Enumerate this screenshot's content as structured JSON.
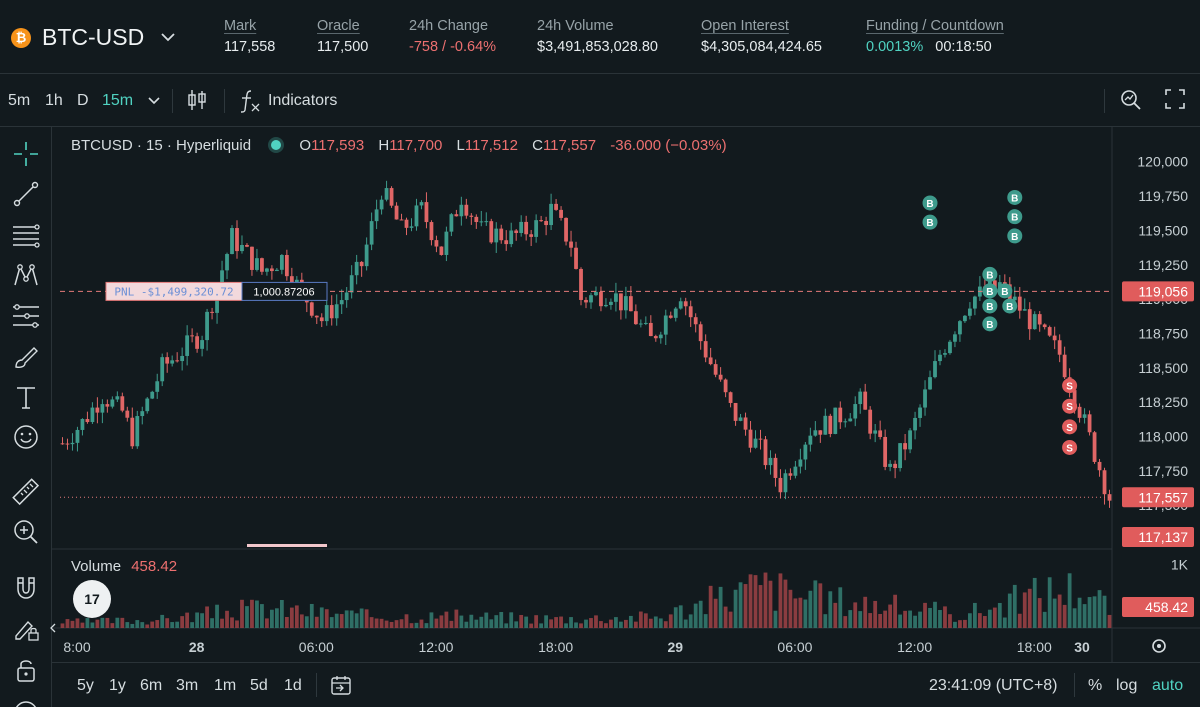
{
  "header": {
    "coin_glyph": "₿",
    "pair": "BTC-USD",
    "stats": [
      {
        "label": "Mark",
        "value": "117,558",
        "underline": true
      },
      {
        "label": "Oracle",
        "value": "117,500",
        "underline": true
      },
      {
        "label": "24h Change",
        "value": "-758 / -0.64%",
        "underline": false
      },
      {
        "label": "24h Volume",
        "value": "$3,491,853,028.80",
        "underline": false
      },
      {
        "label": "Open Interest",
        "value": "$4,305,084,424.65",
        "underline": true
      }
    ],
    "funding_label": "Funding / Countdown",
    "funding_rate": "0.0013%",
    "countdown": "00:18:50"
  },
  "toolbar": {
    "intervals": [
      "5m",
      "1h",
      "D"
    ],
    "active_interval": "15m",
    "indicators_label": "Indicators"
  },
  "legend": {
    "symbol": "BTCUSD · 15 · Hyperliquid",
    "o_label": "O",
    "o": "117,593",
    "h_label": "H",
    "h": "117,700",
    "l_label": "L",
    "l": "117,512",
    "c_label": "C",
    "c": "117,557",
    "change": "-36.000 (−0.03%)"
  },
  "volume": {
    "label": "Volume",
    "value": "458.42",
    "axis_tick": "1K"
  },
  "position": {
    "pnl_label": "PNL -$1,499,320.72",
    "size": "1,000.87206"
  },
  "tv_logo": "17",
  "time_ranges": [
    "5y",
    "1y",
    "6m",
    "3m",
    "1m",
    "5d",
    "1d"
  ],
  "clock": "23:41:09 (UTC+8)",
  "scale_options": {
    "percent": "%",
    "log": "log",
    "auto": "auto"
  },
  "icons": [
    "chevron-down-icon",
    "candles-icon",
    "function-icon",
    "search-chart-icon",
    "fullscreen-icon",
    "crosshair-icon",
    "trendline-icon",
    "fib-icon",
    "pattern-icon",
    "forecast-icon",
    "brush-icon",
    "text-icon",
    "emoji-icon",
    "ruler-icon",
    "zoom-in-icon",
    "magnet-icon",
    "lock-draw-icon",
    "lock-icon",
    "eye-icon",
    "settings-icon",
    "calendar-icon"
  ],
  "colors": {
    "background": "#121a1e",
    "up": "#3e9b8c",
    "down": "#e06666",
    "accent": "#50d2c1",
    "negative_text": "#ed7070"
  },
  "chart_data": {
    "type": "candlestick",
    "symbol": "BTCUSD",
    "interval": "15",
    "exchange": "Hyperliquid",
    "x_ticks": [
      "8:00",
      "28",
      "06:00",
      "12:00",
      "18:00",
      "29",
      "06:00",
      "12:00",
      "18:00",
      "30"
    ],
    "y_ticks": [
      120000,
      119750,
      119500,
      119250,
      119000,
      118750,
      118500,
      118250,
      118000,
      117750,
      117500
    ],
    "y_tick_labels": [
      "120,000",
      "119,750",
      "119,500",
      "119,250",
      "119,000",
      "118,750",
      "118,500",
      "118,250",
      "118,000",
      "117,750",
      "117,500"
    ],
    "ylim": [
      117450,
      120100
    ],
    "price_markers": [
      {
        "label": "119,056",
        "value": 119056,
        "kind": "position"
      },
      {
        "label": "117,557",
        "value": 117557,
        "kind": "last"
      },
      {
        "label": "117,137",
        "value": 117137,
        "kind": "low"
      }
    ],
    "trade_markers": [
      {
        "text": "B",
        "x_index": 174,
        "y": 119700
      },
      {
        "text": "B",
        "x_index": 174,
        "y": 119560
      },
      {
        "text": "B",
        "x_index": 186,
        "y": 119180
      },
      {
        "text": "B",
        "x_index": 186,
        "y": 119060
      },
      {
        "text": "B",
        "x_index": 186,
        "y": 118950
      },
      {
        "text": "B",
        "x_index": 186,
        "y": 118820
      },
      {
        "text": "B",
        "x_index": 189,
        "y": 119060
      },
      {
        "text": "B",
        "x_index": 190,
        "y": 118950
      },
      {
        "text": "B",
        "x_index": 191,
        "y": 119740
      },
      {
        "text": "B",
        "x_index": 191,
        "y": 119600
      },
      {
        "text": "B",
        "x_index": 191,
        "y": 119460
      },
      {
        "text": "S",
        "x_index": 202,
        "y": 118370
      },
      {
        "text": "S",
        "x_index": 202,
        "y": 118220
      },
      {
        "text": "S",
        "x_index": 202,
        "y": 118070
      },
      {
        "text": "S",
        "x_index": 202,
        "y": 117920
      }
    ],
    "close_path": [
      [
        0,
        117950
      ],
      [
        4,
        118100
      ],
      [
        8,
        118300
      ],
      [
        12,
        118180
      ],
      [
        14,
        118000
      ],
      [
        20,
        118500
      ],
      [
        28,
        118750
      ],
      [
        34,
        119450
      ],
      [
        40,
        119200
      ],
      [
        44,
        119300
      ],
      [
        47,
        119100
      ],
      [
        52,
        118850
      ],
      [
        56,
        119000
      ],
      [
        60,
        119250
      ],
      [
        64,
        119800
      ],
      [
        68,
        119500
      ],
      [
        72,
        119650
      ],
      [
        76,
        119350
      ],
      [
        80,
        119750
      ],
      [
        84,
        119500
      ],
      [
        90,
        119450
      ],
      [
        96,
        119550
      ],
      [
        98,
        119650
      ],
      [
        102,
        119400
      ],
      [
        104,
        119000
      ],
      [
        110,
        119050
      ],
      [
        114,
        118900
      ],
      [
        118,
        118700
      ],
      [
        124,
        119050
      ],
      [
        128,
        118700
      ],
      [
        134,
        118200
      ],
      [
        140,
        117900
      ],
      [
        144,
        117650
      ],
      [
        150,
        118050
      ],
      [
        154,
        118100
      ],
      [
        160,
        118250
      ],
      [
        166,
        117750
      ],
      [
        170,
        118000
      ],
      [
        176,
        118600
      ],
      [
        182,
        119000
      ],
      [
        188,
        119100
      ],
      [
        194,
        118850
      ],
      [
        200,
        118600
      ],
      [
        204,
        118200
      ],
      [
        210,
        117557
      ]
    ],
    "volume": {
      "last": 458.42,
      "axis_max": "1K",
      "ylim": [
        0,
        1100
      ],
      "samples": [
        [
          0,
          120
        ],
        [
          20,
          180
        ],
        [
          40,
          430
        ],
        [
          60,
          260
        ],
        [
          80,
          240
        ],
        [
          100,
          200
        ],
        [
          120,
          240
        ],
        [
          140,
          900
        ],
        [
          150,
          650
        ],
        [
          160,
          540
        ],
        [
          180,
          280
        ],
        [
          188,
          480
        ],
        [
          196,
          750
        ],
        [
          204,
          860
        ],
        [
          210,
          458
        ]
      ]
    }
  }
}
